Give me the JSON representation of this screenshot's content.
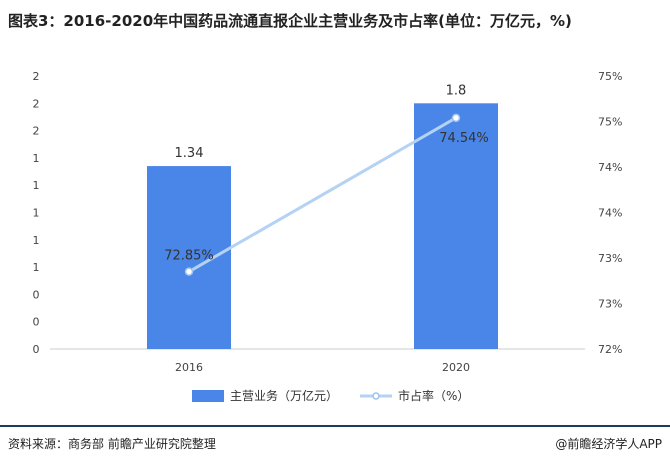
{
  "header": {
    "title": "图表3：2016-2020年中国药品流通直报企业主营业务及市占率(单位：万亿元，%)"
  },
  "chart_data": {
    "type": "bar",
    "categories": [
      "2016",
      "2020"
    ],
    "series": [
      {
        "name": "主营业务（万亿元）",
        "type": "bar",
        "axis": "left",
        "values": [
          1.34,
          1.8
        ],
        "labels": [
          "1.34",
          "1.8"
        ],
        "color": "#4a86e8"
      },
      {
        "name": "市占率（%）",
        "type": "line",
        "axis": "right",
        "values": [
          72.85,
          74.54
        ],
        "labels": [
          "72.85%",
          "74.54%"
        ],
        "color": "#b4d2f4"
      }
    ],
    "left_axis": {
      "ylim": [
        0,
        2
      ],
      "ticks": [
        0,
        0.2,
        0.4,
        0.6,
        0.8,
        1.0,
        1.2,
        1.4,
        1.6,
        1.8,
        2.0
      ],
      "tick_labels": [
        "0",
        "0",
        "0",
        "1",
        "1",
        "1",
        "1",
        "1",
        "2",
        "2",
        "2"
      ]
    },
    "right_axis": {
      "ylim": [
        72,
        75
      ],
      "ticks": [
        72,
        72.5,
        73,
        73.5,
        74,
        74.5,
        75
      ],
      "tick_labels": [
        "72%",
        "73%",
        "73%",
        "74%",
        "74%",
        "75%",
        "75%"
      ]
    },
    "legend_position": "bottom-center",
    "grid": false
  },
  "footer": {
    "source": "资料来源：商务部 前瞻产业研究院整理",
    "app": "@前瞻经济学人APP"
  }
}
